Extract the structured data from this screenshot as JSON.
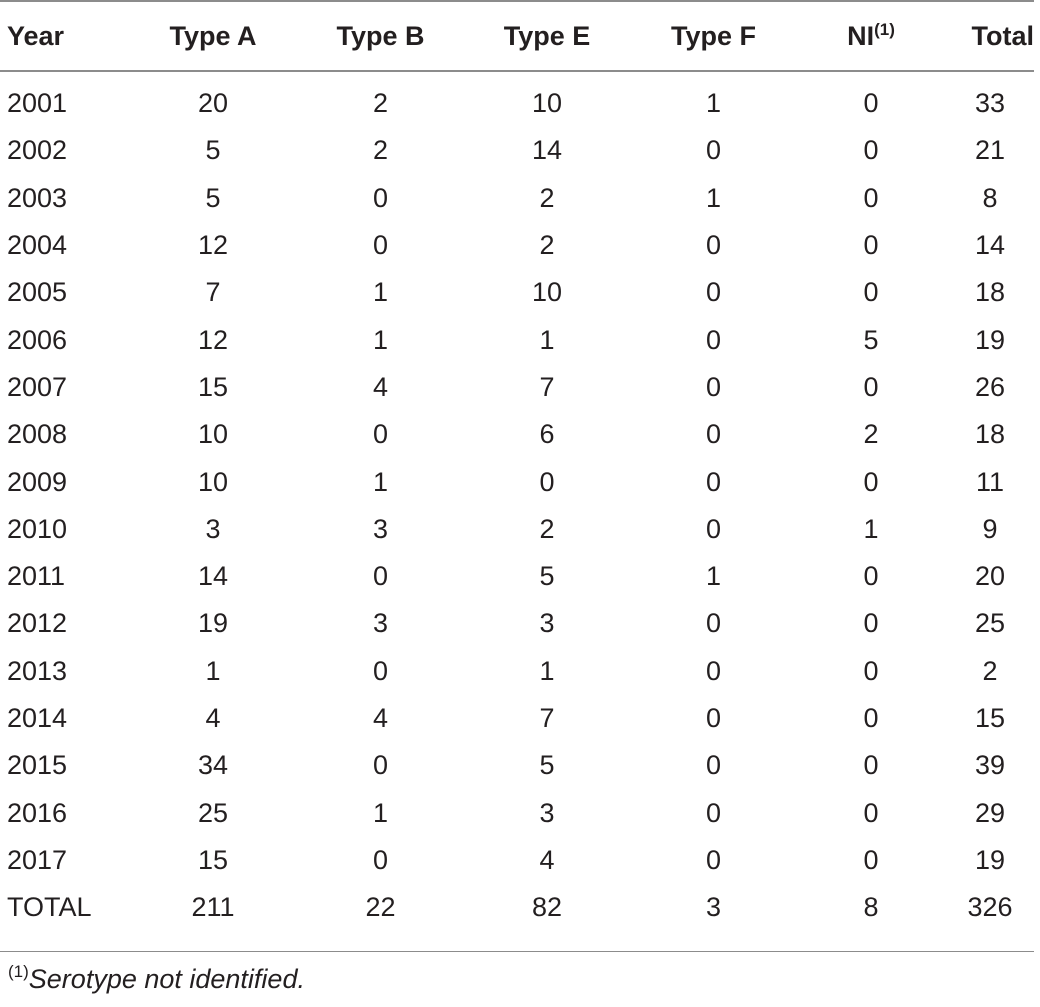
{
  "table": {
    "headers": {
      "year": "Year",
      "type_a": "Type A",
      "type_b": "Type B",
      "type_e": "Type E",
      "type_f": "Type F",
      "ni": "NI",
      "ni_note_marker": "(1)",
      "total": "Total"
    },
    "rows": [
      [
        "2001",
        "20",
        "2",
        "10",
        "1",
        "0",
        "33"
      ],
      [
        "2002",
        "5",
        "2",
        "14",
        "0",
        "0",
        "21"
      ],
      [
        "2003",
        "5",
        "0",
        "2",
        "1",
        "0",
        "8"
      ],
      [
        "2004",
        "12",
        "0",
        "2",
        "0",
        "0",
        "14"
      ],
      [
        "2005",
        "7",
        "1",
        "10",
        "0",
        "0",
        "18"
      ],
      [
        "2006",
        "12",
        "1",
        "1",
        "0",
        "5",
        "19"
      ],
      [
        "2007",
        "15",
        "4",
        "7",
        "0",
        "0",
        "26"
      ],
      [
        "2008",
        "10",
        "0",
        "6",
        "0",
        "2",
        "18"
      ],
      [
        "2009",
        "10",
        "1",
        "0",
        "0",
        "0",
        "11"
      ],
      [
        "2010",
        "3",
        "3",
        "2",
        "0",
        "1",
        "9"
      ],
      [
        "2011",
        "14",
        "0",
        "5",
        "1",
        "0",
        "20"
      ],
      [
        "2012",
        "19",
        "3",
        "3",
        "0",
        "0",
        "25"
      ],
      [
        "2013",
        "1",
        "0",
        "1",
        "0",
        "0",
        "2"
      ],
      [
        "2014",
        "4",
        "4",
        "7",
        "0",
        "0",
        "15"
      ],
      [
        "2015",
        "34",
        "0",
        "5",
        "0",
        "0",
        "39"
      ],
      [
        "2016",
        "25",
        "1",
        "3",
        "0",
        "0",
        "29"
      ],
      [
        "2017",
        "15",
        "0",
        "4",
        "0",
        "0",
        "19"
      ],
      [
        "TOTAL",
        "211",
        "22",
        "82",
        "3",
        "8",
        "326"
      ]
    ]
  },
  "footnote": {
    "marker": "(1)",
    "text": "Serotype not identified."
  }
}
